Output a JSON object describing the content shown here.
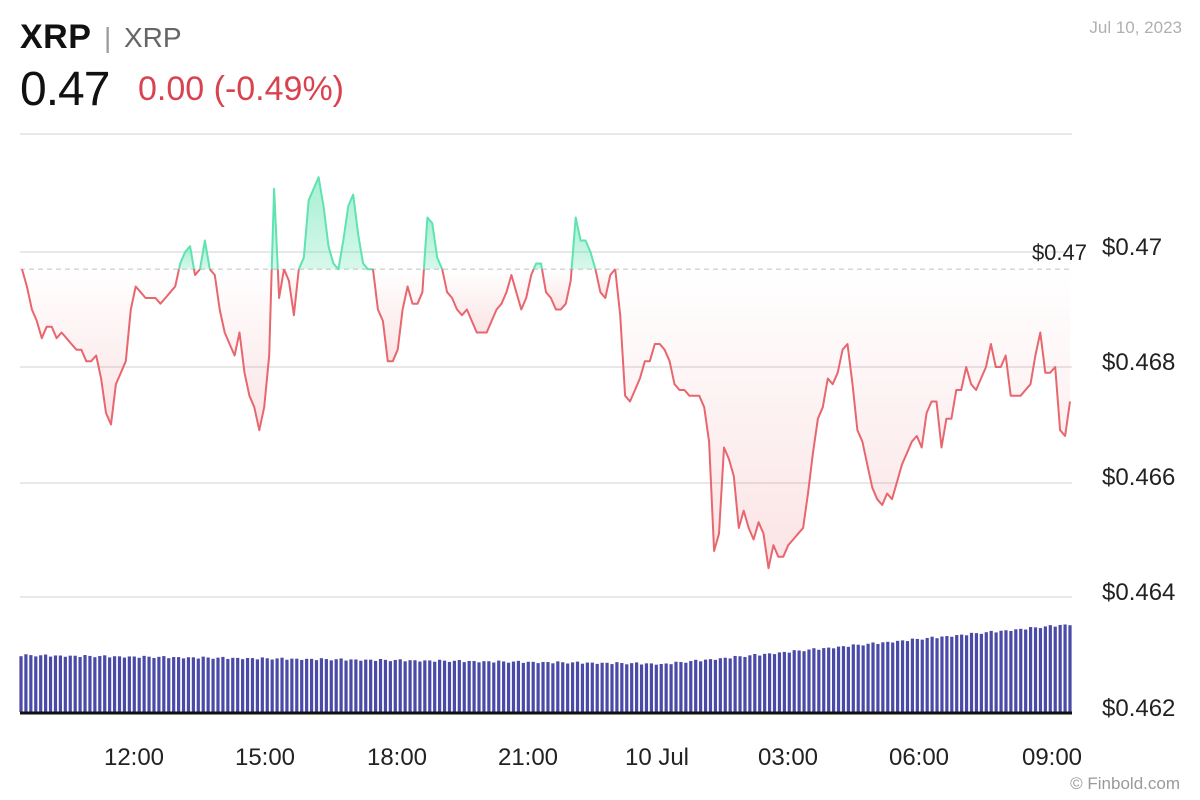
{
  "header": {
    "symbol": "XRP",
    "separator": "|",
    "name": "XRP",
    "price": "0.47",
    "change": "0.00 (-0.49%)",
    "date": "Jul 10, 2023"
  },
  "credit": "© Finbold.com",
  "colors": {
    "down": "#e8666e",
    "up": "#5fe3b0",
    "volume": "#4a4aa8",
    "grid": "#e0e0e0",
    "reference": "#d6d6d6"
  },
  "chart_data": {
    "type": "line",
    "reference_value": 0.4697,
    "reference_label": "$0.47",
    "y_ticks": [
      {
        "value": 0.47,
        "label": "$0.47"
      },
      {
        "value": 0.468,
        "label": "$0.468"
      },
      {
        "value": 0.466,
        "label": "$0.466"
      },
      {
        "value": 0.464,
        "label": "$0.464"
      },
      {
        "value": 0.462,
        "label": "$0.462"
      }
    ],
    "x_ticks": [
      "12:00",
      "15:00",
      "18:00",
      "21:00",
      "10 Jul",
      "03:00",
      "06:00",
      "09:00"
    ],
    "x_range": [
      "09 Jul 09:30",
      "10 Jul 09:20"
    ],
    "series": [
      {
        "values": [
          0.4697,
          0.4694,
          0.469,
          0.4688,
          0.4685,
          0.4687,
          0.4687,
          0.4685,
          0.4686,
          0.4685,
          0.4684,
          0.4683,
          0.4683,
          0.4681,
          0.4681,
          0.4682,
          0.4678,
          0.4672,
          0.467,
          0.4677,
          0.4679,
          0.4681,
          0.469,
          0.4694,
          0.4693,
          0.4692,
          0.4692,
          0.4692,
          0.4691,
          0.4692,
          0.4693,
          0.4694,
          0.4698,
          0.47,
          0.4701,
          0.4696,
          0.4697,
          0.4702,
          0.4697,
          0.4696,
          0.469,
          0.4686,
          0.4684,
          0.4682,
          0.4686,
          0.4679,
          0.4675,
          0.4673,
          0.4669,
          0.4673,
          0.4682,
          0.4711,
          0.4692,
          0.4697,
          0.4695,
          0.4689,
          0.4697,
          0.4699,
          0.4709,
          0.4711,
          0.4713,
          0.4708,
          0.4701,
          0.4698,
          0.4697,
          0.4702,
          0.4708,
          0.471,
          0.4703,
          0.4698,
          0.4697,
          0.4697,
          0.469,
          0.4688,
          0.4681,
          0.4681,
          0.4683,
          0.469,
          0.4694,
          0.4691,
          0.4691,
          0.4693,
          0.4706,
          0.4705,
          0.4699,
          0.4697,
          0.4693,
          0.4692,
          0.469,
          0.4689,
          0.469,
          0.4688,
          0.4686,
          0.4686,
          0.4686,
          0.4688,
          0.469,
          0.4691,
          0.4693,
          0.4696,
          0.4693,
          0.469,
          0.4692,
          0.4696,
          0.4698,
          0.4698,
          0.4693,
          0.4692,
          0.469,
          0.469,
          0.4691,
          0.4695,
          0.4706,
          0.4702,
          0.4702,
          0.47,
          0.4697,
          0.4693,
          0.4692,
          0.4696,
          0.4697,
          0.4689,
          0.4675,
          0.4674,
          0.4676,
          0.4678,
          0.4681,
          0.4681,
          0.4684,
          0.4684,
          0.4683,
          0.4681,
          0.4677,
          0.4676,
          0.4676,
          0.4675,
          0.4675,
          0.4675,
          0.4673,
          0.4667,
          0.4648,
          0.4651,
          0.4666,
          0.4664,
          0.4661,
          0.4652,
          0.4655,
          0.4652,
          0.465,
          0.4653,
          0.4651,
          0.4645,
          0.4649,
          0.4647,
          0.4647,
          0.4649,
          0.465,
          0.4651,
          0.4652,
          0.4658,
          0.4665,
          0.4671,
          0.4673,
          0.4678,
          0.4677,
          0.4679,
          0.4683,
          0.4684,
          0.4677,
          0.4669,
          0.4667,
          0.4663,
          0.4659,
          0.4657,
          0.4656,
          0.4658,
          0.4657,
          0.466,
          0.4663,
          0.4665,
          0.4667,
          0.4668,
          0.4666,
          0.4672,
          0.4674,
          0.4674,
          0.4666,
          0.4671,
          0.4671,
          0.4676,
          0.4676,
          0.468,
          0.4677,
          0.4676,
          0.4678,
          0.468,
          0.4684,
          0.468,
          0.468,
          0.4682,
          0.4675,
          0.4675,
          0.4675,
          0.4676,
          0.4677,
          0.4682,
          0.4686,
          0.4679,
          0.4679,
          0.468,
          0.4669,
          0.4668,
          0.4674
        ],
        "color_rule": "above reference = up color, below reference = down color"
      }
    ],
    "volume_trend": "gradually declines through midnight, then rises steadily to the latest bar"
  }
}
